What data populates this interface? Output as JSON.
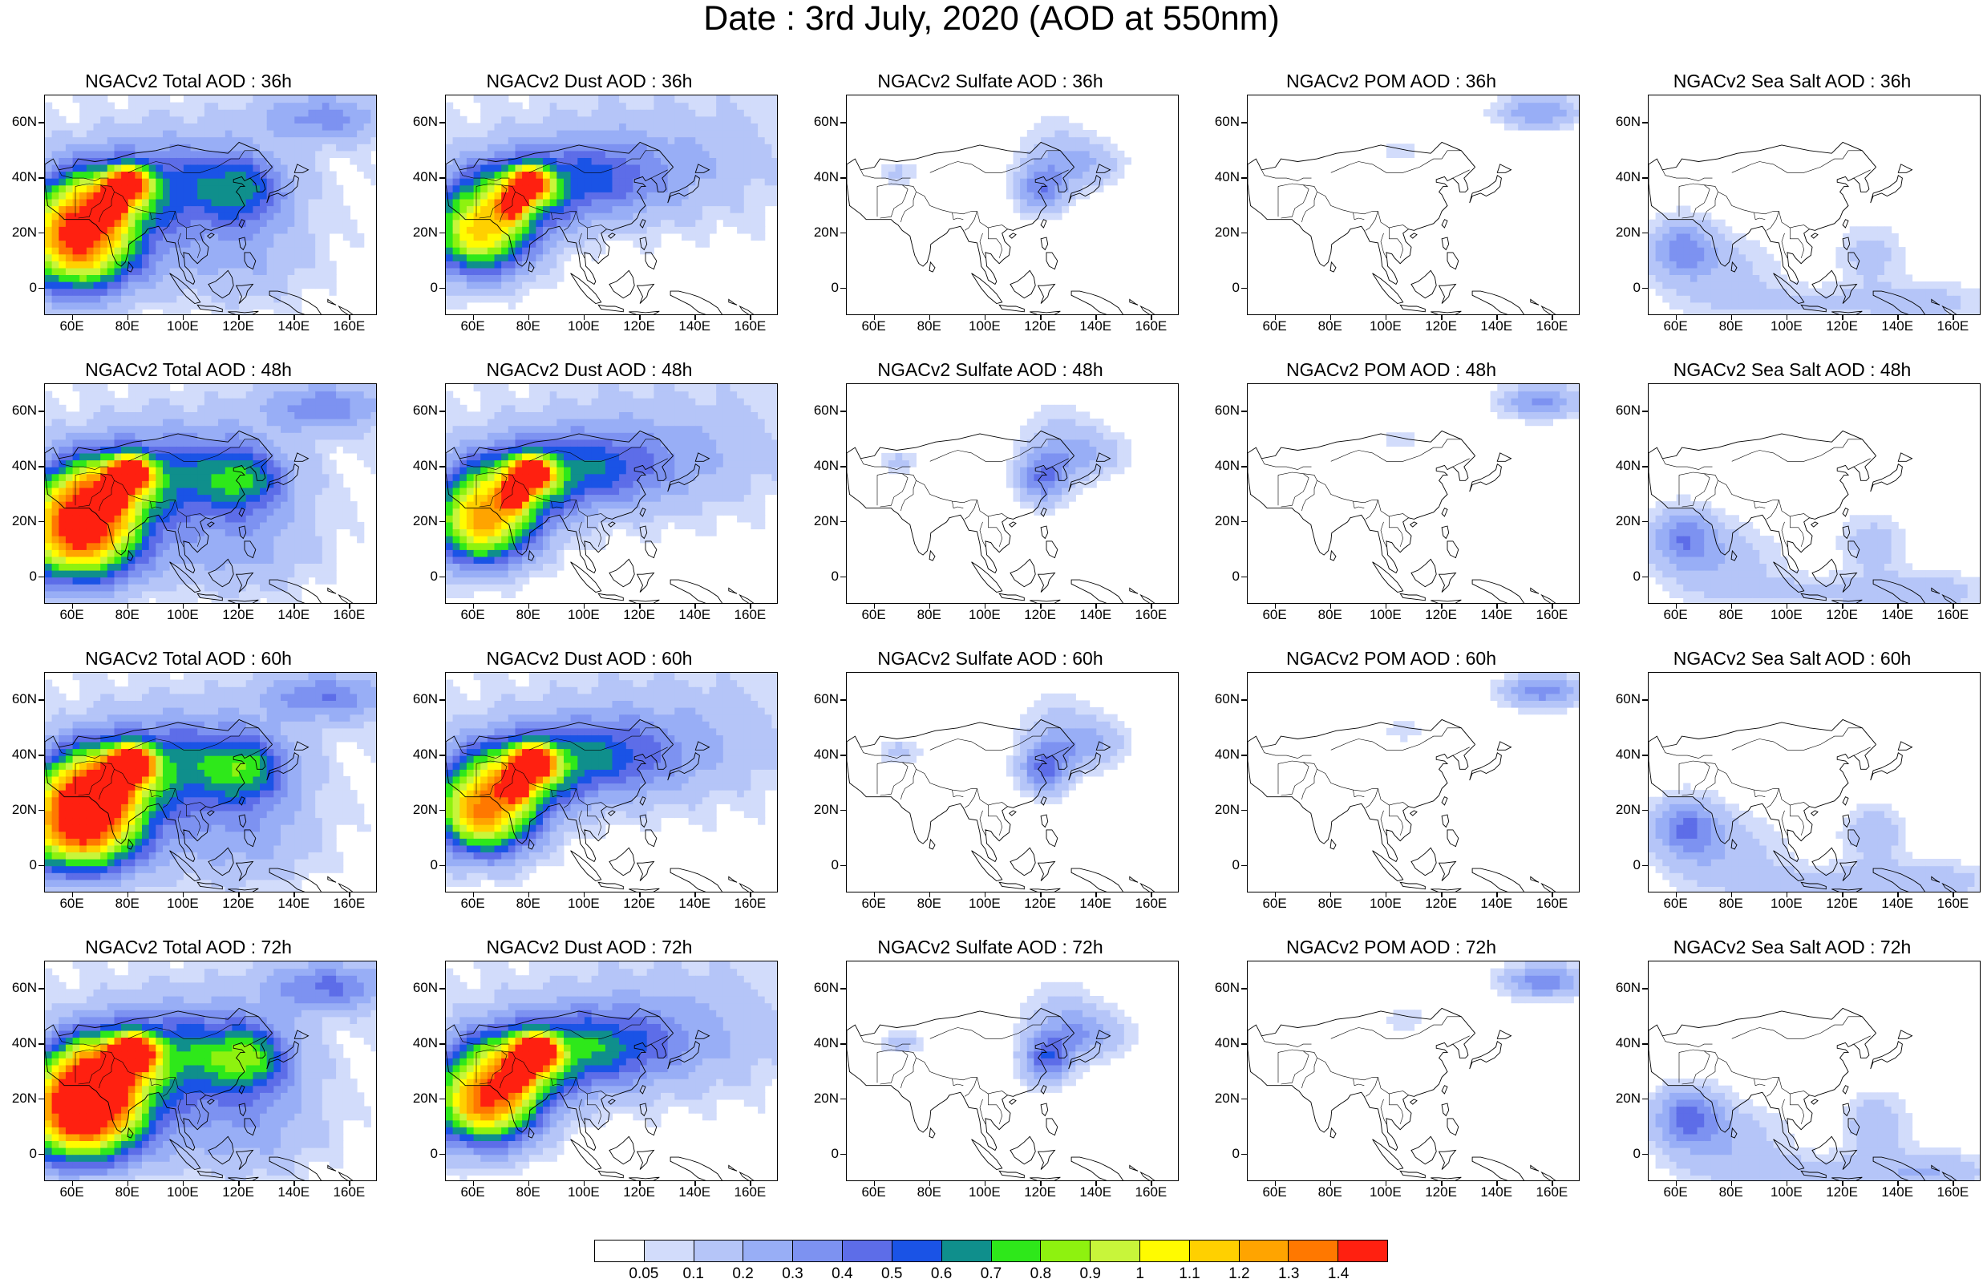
{
  "title": "Date : 3rd July, 2020 (AOD at 550nm)",
  "y_ticks": [
    "60N",
    "40N",
    "20N",
    "0"
  ],
  "x_ticks": [
    "60E",
    "80E",
    "100E",
    "120E",
    "140E",
    "160E"
  ],
  "panels": [
    {
      "title": "NGACv2 Total AOD : 36h"
    },
    {
      "title": "NGACv2 Dust AOD : 36h"
    },
    {
      "title": "NGACv2 Sulfate AOD : 36h"
    },
    {
      "title": "NGACv2 POM AOD : 36h"
    },
    {
      "title": "NGACv2 Sea Salt AOD : 36h"
    },
    {
      "title": "NGACv2 Total AOD : 48h"
    },
    {
      "title": "NGACv2 Dust AOD : 48h"
    },
    {
      "title": "NGACv2 Sulfate AOD : 48h"
    },
    {
      "title": "NGACv2 POM AOD : 48h"
    },
    {
      "title": "NGACv2 Sea Salt AOD : 48h"
    },
    {
      "title": "NGACv2 Total AOD : 60h"
    },
    {
      "title": "NGACv2 Dust AOD : 60h"
    },
    {
      "title": "NGACv2 Sulfate AOD : 60h"
    },
    {
      "title": "NGACv2 POM AOD : 60h"
    },
    {
      "title": "NGACv2 Sea Salt AOD : 60h"
    },
    {
      "title": "NGACv2 Total AOD : 72h"
    },
    {
      "title": "NGACv2 Dust AOD : 72h"
    },
    {
      "title": "NGACv2 Sulfate AOD : 72h"
    },
    {
      "title": "NGACv2 POM AOD : 72h"
    },
    {
      "title": "NGACv2 Sea Salt  AOD : 72h"
    }
  ],
  "colorbar": {
    "labels": [
      "0.05",
      "0.1",
      "0.2",
      "0.3",
      "0.4",
      "0.5",
      "0.6",
      "0.7",
      "0.8",
      "0.9",
      "1",
      "1.1",
      "1.2",
      "1.3",
      "1.4"
    ],
    "colors": [
      "#ffffff",
      "#d2dcfb",
      "#b5c5f8",
      "#98aef6",
      "#7d92f1",
      "#5d6de8",
      "#1a53e6",
      "#0f8f8c",
      "#2ee81a",
      "#8ef20f",
      "#c8f53a",
      "#fffb00",
      "#ffd000",
      "#ffa400",
      "#ff7800",
      "#ff2010"
    ]
  }
}
